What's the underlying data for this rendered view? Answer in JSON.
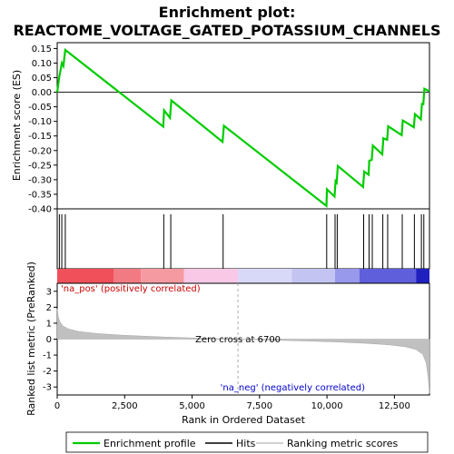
{
  "chart_data": {
    "type": "line",
    "title_line1": "Enrichment plot:",
    "title_line2": "REACTOME_VOLTAGE_GATED_POTASSIUM_CHANNELS",
    "es_panel": {
      "ylabel": "Enrichment score (ES)",
      "ylim": [
        -0.4,
        0.17
      ],
      "yticks": [
        "0.15",
        "0.10",
        "0.05",
        "0.00",
        "-0.05",
        "-0.10",
        "-0.15",
        "-0.20",
        "-0.25",
        "-0.30",
        "-0.35",
        "-0.40"
      ],
      "ytick_values": [
        0.15,
        0.1,
        0.05,
        0.0,
        -0.05,
        -0.1,
        -0.15,
        -0.2,
        -0.25,
        -0.3,
        -0.35,
        -0.4
      ],
      "series_color": "#00cc00",
      "points": [
        [
          0,
          0.0
        ],
        [
          80,
          0.055
        ],
        [
          170,
          0.1
        ],
        [
          230,
          0.09
        ],
        [
          300,
          0.145
        ],
        [
          3930,
          -0.118
        ],
        [
          3960,
          -0.062
        ],
        [
          4180,
          -0.088
        ],
        [
          4230,
          -0.028
        ],
        [
          6130,
          -0.17
        ],
        [
          6180,
          -0.115
        ],
        [
          9980,
          -0.39
        ],
        [
          10000,
          -0.333
        ],
        [
          10280,
          -0.358
        ],
        [
          10320,
          -0.305
        ],
        [
          10360,
          -0.31
        ],
        [
          10400,
          -0.253
        ],
        [
          11340,
          -0.325
        ],
        [
          11380,
          -0.272
        ],
        [
          11540,
          -0.283
        ],
        [
          11570,
          -0.235
        ],
        [
          11660,
          -0.232
        ],
        [
          11700,
          -0.183
        ],
        [
          12050,
          -0.213
        ],
        [
          12090,
          -0.158
        ],
        [
          12230,
          -0.163
        ],
        [
          12270,
          -0.117
        ],
        [
          12770,
          -0.147
        ],
        [
          12810,
          -0.097
        ],
        [
          13220,
          -0.12
        ],
        [
          13260,
          -0.075
        ],
        [
          13480,
          -0.093
        ],
        [
          13520,
          -0.04
        ],
        [
          13570,
          -0.041
        ],
        [
          13610,
          0.012
        ],
        [
          13800,
          0.003
        ]
      ]
    },
    "hits": [
      80,
      170,
      300,
      3950,
      4210,
      6150,
      9990,
      10300,
      10380,
      11360,
      11560,
      11680,
      12070,
      12250,
      12790,
      13240,
      13500,
      13590
    ],
    "xlim": [
      0,
      13800
    ],
    "xticks": [
      "0",
      "2,500",
      "5,000",
      "7,500",
      "10,000",
      "12,500"
    ],
    "xtick_values": [
      0,
      2500,
      5000,
      7500,
      10000,
      12500
    ],
    "xlabel": "Rank in Ordered Dataset",
    "heat_bands": [
      {
        "from": 0,
        "to": 2100,
        "color": "#f0505a"
      },
      {
        "from": 2100,
        "to": 3100,
        "color": "#f27a82"
      },
      {
        "from": 3100,
        "to": 4700,
        "color": "#f59aa0"
      },
      {
        "from": 4700,
        "to": 6700,
        "color": "#f8c8e6"
      },
      {
        "from": 6700,
        "to": 8700,
        "color": "#d8d8f8"
      },
      {
        "from": 8700,
        "to": 10300,
        "color": "#c4c4f2"
      },
      {
        "from": 10300,
        "to": 11200,
        "color": "#9898ec"
      },
      {
        "from": 11200,
        "to": 13300,
        "color": "#5f5fdc"
      },
      {
        "from": 13300,
        "to": 13800,
        "color": "#2020c0"
      }
    ],
    "metric_panel": {
      "ylabel": "Ranked list metric (PreRanked)",
      "ylim": [
        -3.5,
        3.5
      ],
      "yticks": [
        "3",
        "2",
        "1",
        "0",
        "-1",
        "-2",
        "-3"
      ],
      "ytick_values": [
        3,
        2,
        1,
        0,
        -1,
        -2,
        -3
      ],
      "profile": [
        [
          0,
          1.9
        ],
        [
          40,
          1.4
        ],
        [
          100,
          1.1
        ],
        [
          200,
          0.85
        ],
        [
          400,
          0.65
        ],
        [
          800,
          0.48
        ],
        [
          1500,
          0.35
        ],
        [
          2500,
          0.24
        ],
        [
          4000,
          0.13
        ],
        [
          5500,
          0.05
        ],
        [
          6700,
          0.0
        ],
        [
          8000,
          -0.06
        ],
        [
          9500,
          -0.13
        ],
        [
          10500,
          -0.19
        ],
        [
          11500,
          -0.27
        ],
        [
          12300,
          -0.36
        ],
        [
          12900,
          -0.48
        ],
        [
          13300,
          -0.65
        ],
        [
          13550,
          -0.95
        ],
        [
          13680,
          -1.5
        ],
        [
          13750,
          -2.4
        ],
        [
          13800,
          -3.4
        ]
      ],
      "pos_label": "'na_pos' (positively correlated)",
      "neg_label": "'na_neg' (negatively correlated)",
      "zero_cross_label": "Zero cross at 6700",
      "zero_cross": 6700
    },
    "legend": {
      "placement": "bottom",
      "entries": [
        {
          "label": "Enrichment profile",
          "color": "#00cc00"
        },
        {
          "label": "Hits",
          "color": "#000000"
        },
        {
          "label": "Ranking metric scores",
          "color": "#c0c0c0"
        }
      ]
    }
  }
}
